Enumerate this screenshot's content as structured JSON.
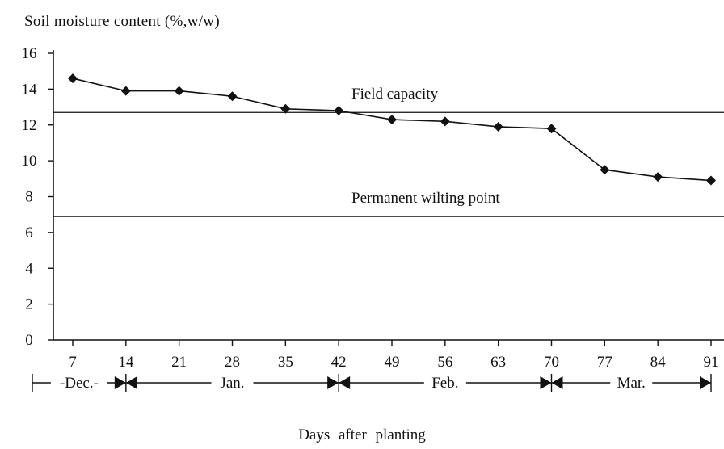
{
  "chart_data": {
    "type": "line",
    "ylabel": "Soil moisture content (%,w/w)",
    "xlabel": "Days after planting",
    "ylim": [
      0,
      16
    ],
    "yticks": [
      "0",
      "2",
      "4",
      "6",
      "8",
      "10",
      "12",
      "14",
      "16"
    ],
    "xticks": [
      "7",
      "14",
      "21",
      "28",
      "35",
      "42",
      "49",
      "56",
      "63",
      "70",
      "77",
      "84",
      "91"
    ],
    "series": [
      {
        "x": [
          7,
          14,
          21,
          28,
          35,
          42,
          49,
          56,
          63,
          70,
          77,
          84,
          91
        ],
        "values": [
          14.6,
          13.9,
          13.9,
          13.6,
          12.9,
          12.8,
          12.3,
          12.2,
          11.9,
          11.8,
          9.5,
          9.1,
          8.9
        ]
      }
    ],
    "reference_lines": [
      {
        "label": "Field capacity",
        "value": 12.7
      },
      {
        "label": "Permanent  wilting  point",
        "value": 6.9
      }
    ],
    "months": [
      {
        "label": "-Dec.-",
        "from": 7,
        "to": 14
      },
      {
        "label": "Jan.",
        "from": 14,
        "to": 42
      },
      {
        "label": "Feb.",
        "from": 42,
        "to": 70
      },
      {
        "label": "Mar.",
        "from": 70,
        "to": 91
      }
    ],
    "grid": false
  }
}
